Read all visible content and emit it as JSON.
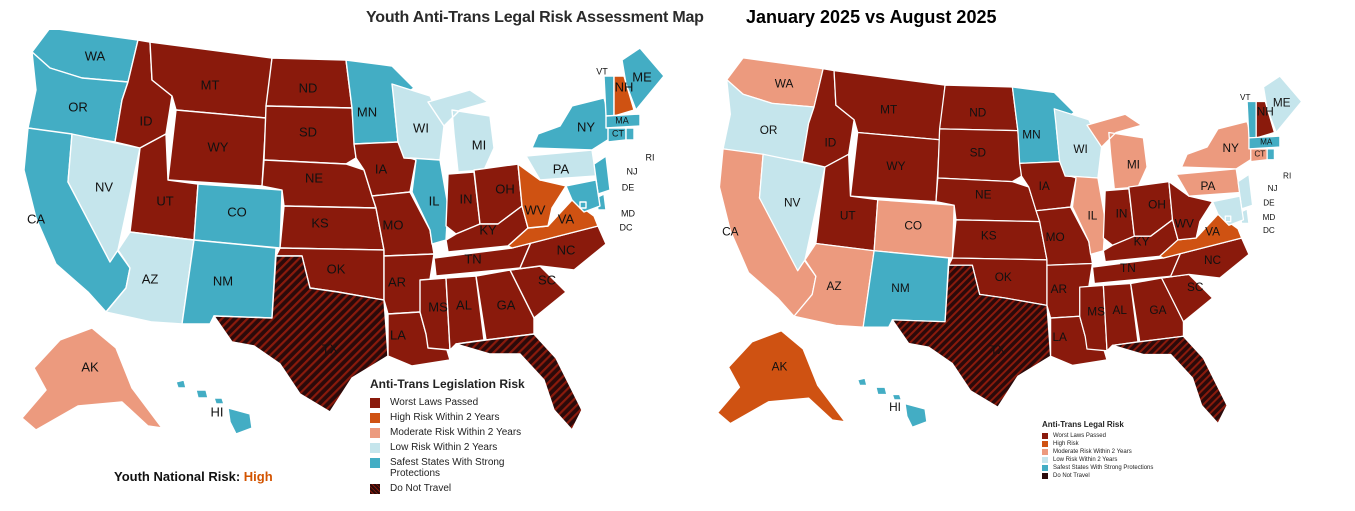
{
  "title_left": "Youth Anti-Trans Legal Risk Assessment Map",
  "title_right": "January 2025 vs August 2025",
  "colors": {
    "worst": "#8a1a0c",
    "high": "#cf5212",
    "moderate": "#ec9a7e",
    "low": "#c5e5ec",
    "safe": "#43adc4",
    "dnt": "#2b0a0a"
  },
  "legend_left": {
    "title": "Anti-Trans Legislation Risk",
    "items": [
      {
        "label": "Worst Laws Passed",
        "color": "#8a1a0c"
      },
      {
        "label": "High Risk Within 2 Years",
        "color": "#cf5212"
      },
      {
        "label": "Moderate Risk Within 2 Years",
        "color": "#ec9a7e"
      },
      {
        "label": "Low Risk Within 2 Years",
        "color": "#c5e5ec"
      },
      {
        "label": "Safest States With Strong Protections",
        "color": "#43adc4"
      },
      {
        "label": "Do Not Travel",
        "color": "#2b0a0a"
      }
    ]
  },
  "legend_right": {
    "title": "Anti-Trans Legal Risk",
    "items": [
      {
        "label": "Worst Laws Passed",
        "color": "#8a1a0c"
      },
      {
        "label": "High Risk",
        "color": "#cf5212"
      },
      {
        "label": "Moderate Risk Within 2 Years",
        "color": "#ec9a7e"
      },
      {
        "label": "Low Risk Within 2 Years",
        "color": "#c5e5ec"
      },
      {
        "label": "Safest States With Strong Protections",
        "color": "#43adc4"
      },
      {
        "label": "Do Not Travel",
        "color": "#2b0a0a"
      }
    ]
  },
  "national_risk": {
    "label": "Youth National Risk:",
    "value": "High"
  },
  "map_left": {
    "WA": "safe",
    "OR": "safe",
    "CA": "safe",
    "NV": "low",
    "ID": "worst",
    "MT": "worst",
    "WY": "worst",
    "UT": "worst",
    "AZ": "low",
    "CO": "safe",
    "NM": "safe",
    "ND": "worst",
    "SD": "worst",
    "NE": "worst",
    "KS": "worst",
    "OK": "worst",
    "TX": "dnt",
    "MN": "safe",
    "IA": "worst",
    "MO": "worst",
    "AR": "worst",
    "LA": "worst",
    "WI": "low",
    "IL": "safe",
    "MI": "low",
    "IN": "worst",
    "OH": "worst",
    "KY": "worst",
    "TN": "worst",
    "MS": "worst",
    "AL": "worst",
    "GA": "worst",
    "FL": "dnt",
    "SC": "worst",
    "NC": "worst",
    "VA": "high",
    "WV": "high",
    "PA": "low",
    "NY": "safe",
    "VT": "safe",
    "NH": "high",
    "ME": "safe",
    "MA": "safe",
    "CT": "safe",
    "RI": "safe",
    "NJ": "safe",
    "DE": "safe",
    "MD": "safe",
    "DC": "safe",
    "AK": "moderate",
    "HI": "safe"
  },
  "map_right": {
    "WA": "moderate",
    "OR": "low",
    "CA": "moderate",
    "NV": "low",
    "ID": "worst",
    "MT": "worst",
    "WY": "worst",
    "UT": "worst",
    "AZ": "moderate",
    "CO": "moderate",
    "NM": "safe",
    "ND": "worst",
    "SD": "worst",
    "NE": "worst",
    "KS": "worst",
    "OK": "worst",
    "TX": "dnt",
    "MN": "safe",
    "IA": "worst",
    "MO": "worst",
    "AR": "worst",
    "LA": "worst",
    "WI": "low",
    "IL": "moderate",
    "MI": "moderate",
    "IN": "worst",
    "OH": "worst",
    "KY": "worst",
    "TN": "worst",
    "MS": "worst",
    "AL": "worst",
    "GA": "worst",
    "FL": "dnt",
    "SC": "worst",
    "NC": "worst",
    "VA": "high",
    "WV": "worst",
    "PA": "moderate",
    "NY": "moderate",
    "VT": "safe",
    "NH": "worst",
    "ME": "low",
    "MA": "safe",
    "CT": "moderate",
    "RI": "safe",
    "NJ": "low",
    "DE": "low",
    "MD": "low",
    "DC": "low",
    "AK": "high",
    "HI": "safe"
  }
}
